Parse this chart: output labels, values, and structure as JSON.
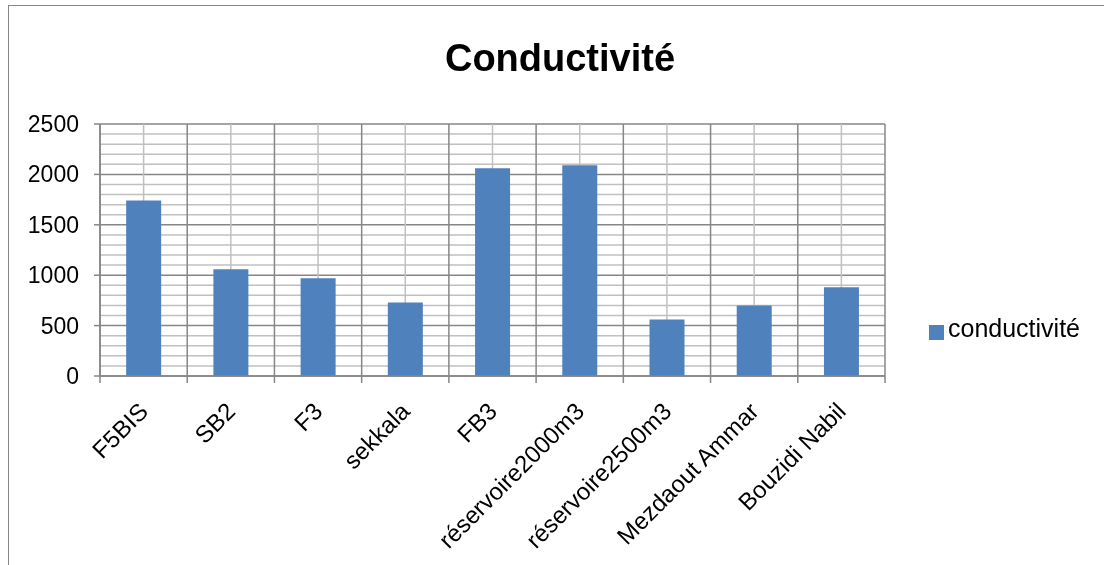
{
  "chart_data": {
    "type": "bar",
    "title": "Conductivité",
    "categories": [
      "F5BIS",
      "SB2",
      "F3",
      "sekkala",
      "FB3",
      "réservoire2000m3",
      "réservoire2500m3",
      "Mezdaout Ammar",
      "Bouzidi Nabil"
    ],
    "series": [
      {
        "name": "conductivité",
        "color": "#4f81bd",
        "values": [
          1740,
          1060,
          970,
          730,
          2060,
          2090,
          560,
          700,
          880
        ]
      }
    ],
    "ylim": [
      0,
      2500
    ],
    "yticks": [
      0,
      {
        "value": 100,
        "label": null
      },
      {
        "value": 200,
        "label": null
      },
      {
        "value": 300,
        "label": null
      },
      {
        "value": 400,
        "label": null
      },
      500,
      {
        "value": 600,
        "label": null
      },
      {
        "value": 700,
        "label": null
      },
      {
        "value": 800,
        "label": null
      },
      {
        "value": 900,
        "label": null
      },
      1000,
      {
        "value": 1100,
        "label": null
      },
      {
        "value": 1200,
        "label": null
      },
      {
        "value": 1300,
        "label": null
      },
      {
        "value": 1400,
        "label": null
      },
      1500,
      {
        "value": 1600,
        "label": null
      },
      {
        "value": 1700,
        "label": null
      },
      {
        "value": 1800,
        "label": null
      },
      {
        "value": 1900,
        "label": null
      },
      2000,
      {
        "value": 2100,
        "label": null
      },
      {
        "value": 2200,
        "label": null
      },
      {
        "value": 2300,
        "label": null
      },
      {
        "value": 2400,
        "label": null
      },
      2500
    ],
    "grid": true,
    "legend": "right"
  }
}
